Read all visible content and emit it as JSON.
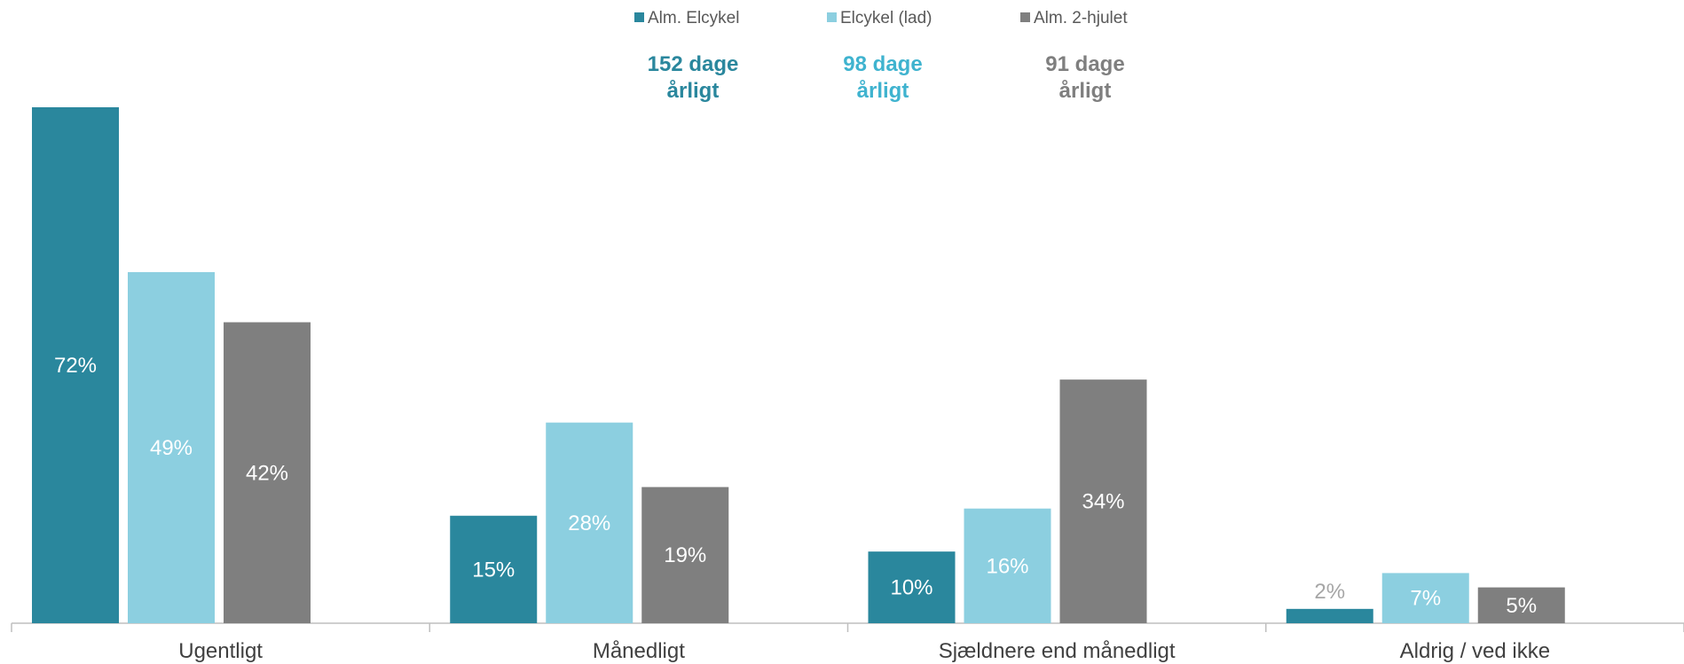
{
  "chart_data": {
    "type": "bar",
    "categories": [
      "Ugentligt",
      "Månedligt",
      "Sjældnere end månedligt",
      "Aldrig / ved ikke"
    ],
    "series": [
      {
        "name": "Alm. Elcykel",
        "values": [
          72,
          15,
          10,
          2
        ],
        "labels": [
          "72%",
          "15%",
          "10%",
          "2%"
        ],
        "color": "#2a879d",
        "days_line1": "152 dage",
        "days_line2": "årligt",
        "days_color": "#2a879d"
      },
      {
        "name": "Elcykel (lad)",
        "values": [
          49,
          28,
          16,
          7
        ],
        "labels": [
          "49%",
          "28%",
          "16%",
          "7%"
        ],
        "color": "#8ccfe0",
        "days_line1": "98 dage",
        "days_line2": "årligt",
        "days_color": "#3fb3cf"
      },
      {
        "name": "Alm. 2-hjulet",
        "values": [
          42,
          19,
          34,
          5
        ],
        "labels": [
          "42%",
          "19%",
          "34%",
          "5%"
        ],
        "color": "#7f7f7f",
        "days_line1": "91 dage",
        "days_line2": "årligt",
        "days_color": "#7f7f7f"
      }
    ],
    "ylim": [
      0,
      72
    ],
    "grid": false,
    "legend": "top-center",
    "value_unit": "%"
  },
  "colors": {
    "axis": "#bfbfbf",
    "category_text": "#404040",
    "legend_text": "#595959",
    "label_on_bar": "#ffffff",
    "label_above_bar": "#a6a6a6"
  }
}
